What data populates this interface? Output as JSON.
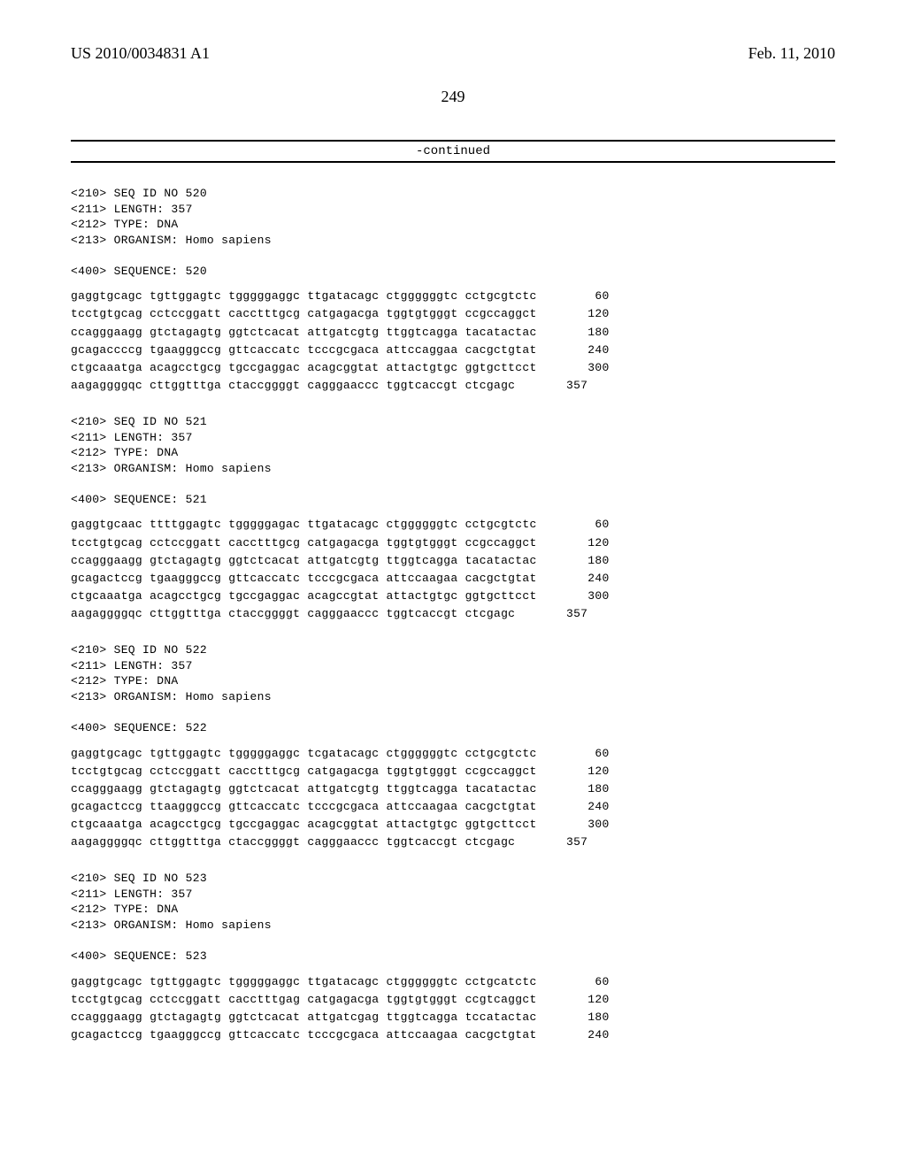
{
  "header": {
    "left": "US 2010/0034831 A1",
    "right": "Feb. 11, 2010"
  },
  "page_number": "249",
  "continued_label": "-continued",
  "sequences": [
    {
      "meta": [
        "<210> SEQ ID NO 520",
        "<211> LENGTH: 357",
        "<212> TYPE: DNA",
        "<213> ORGANISM: Homo sapiens",
        "",
        "<400> SEQUENCE: 520"
      ],
      "lines": [
        {
          "text": "gaggtgcagc tgttggagtc tgggggaggc ttgatacagc ctggggggtc cctgcgtctc",
          "num": "60"
        },
        {
          "text": "tcctgtgcag cctccggatt cacctttgcg catgagacga tggtgtgggt ccgccaggct",
          "num": "120"
        },
        {
          "text": "ccagggaagg gtctagagtg ggtctcacat attgatcgtg ttggtcagga tacatactac",
          "num": "180"
        },
        {
          "text": "gcagaccccg tgaagggccg gttcaccatc tcccgcgaca attccaggaa cacgctgtat",
          "num": "240"
        },
        {
          "text": "ctgcaaatga acagcctgcg tgccgaggac acagcggtat attactgtgc ggtgcttcct",
          "num": "300"
        },
        {
          "text": "aagaggggqc cttggtttga ctaccggggt cagggaaccc tggtcaccgt ctcgagc",
          "num": "357"
        }
      ]
    },
    {
      "meta": [
        "<210> SEQ ID NO 521",
        "<211> LENGTH: 357",
        "<212> TYPE: DNA",
        "<213> ORGANISM: Homo sapiens",
        "",
        "<400> SEQUENCE: 521"
      ],
      "lines": [
        {
          "text": "gaggtgcaac ttttggagtc tgggggagac ttgatacagc ctggggggtc cctgcgtctc",
          "num": "60"
        },
        {
          "text": "tcctgtgcag cctccggatt cacctttgcg catgagacga tggtgtgggt ccgccaggct",
          "num": "120"
        },
        {
          "text": "ccagggaagg gtctagagtg ggtctcacat attgatcgtg ttggtcagga tacatactac",
          "num": "180"
        },
        {
          "text": "gcagactccg tgaagggccg gttcaccatc tcccgcgaca attccaagaa cacgctgtat",
          "num": "240"
        },
        {
          "text": "ctgcaaatga acagcctgcg tgccgaggac acagccgtat attactgtgc ggtgcttcct",
          "num": "300"
        },
        {
          "text": "aagaggggqc cttggtttga ctaccggggt cagggaaccc tggtcaccgt ctcgagc",
          "num": "357"
        }
      ]
    },
    {
      "meta": [
        "<210> SEQ ID NO 522",
        "<211> LENGTH: 357",
        "<212> TYPE: DNA",
        "<213> ORGANISM: Homo sapiens",
        "",
        "<400> SEQUENCE: 522"
      ],
      "lines": [
        {
          "text": "gaggtgcagc tgttggagtc tgggggaggc tcgatacagc ctggggggtc cctgcgtctc",
          "num": "60"
        },
        {
          "text": "tcctgtgcag cctccggatt cacctttgcg catgagacga tggtgtgggt ccgccaggct",
          "num": "120"
        },
        {
          "text": "ccagggaagg gtctagagtg ggtctcacat attgatcgtg ttggtcagga tacatactac",
          "num": "180"
        },
        {
          "text": "gcagactccg ttaagggccg gttcaccatc tcccgcgaca attccaagaa cacgctgtat",
          "num": "240"
        },
        {
          "text": "ctgcaaatga acagcctgcg tgccgaggac acagcggtat attactgtgc ggtgcttcct",
          "num": "300"
        },
        {
          "text": "aagaggggqc cttggtttga ctaccggggt cagggaaccc tggtcaccgt ctcgagc",
          "num": "357"
        }
      ]
    },
    {
      "meta": [
        "<210> SEQ ID NO 523",
        "<211> LENGTH: 357",
        "<212> TYPE: DNA",
        "<213> ORGANISM: Homo sapiens",
        "",
        "<400> SEQUENCE: 523"
      ],
      "lines": [
        {
          "text": "gaggtgcagc tgttggagtc tgggggaggc ttgatacagc ctggggggtc cctgcatctc",
          "num": "60"
        },
        {
          "text": "tcctgtgcag cctccggatt cacctttgag catgagacga tggtgtgggt ccgtcaggct",
          "num": "120"
        },
        {
          "text": "ccagggaagg gtctagagtg ggtctcacat attgatcgag ttggtcagga tccatactac",
          "num": "180"
        },
        {
          "text": "gcagactccg tgaagggccg gttcaccatc tcccgcgaca attccaagaa cacgctgtat",
          "num": "240"
        }
      ]
    }
  ]
}
